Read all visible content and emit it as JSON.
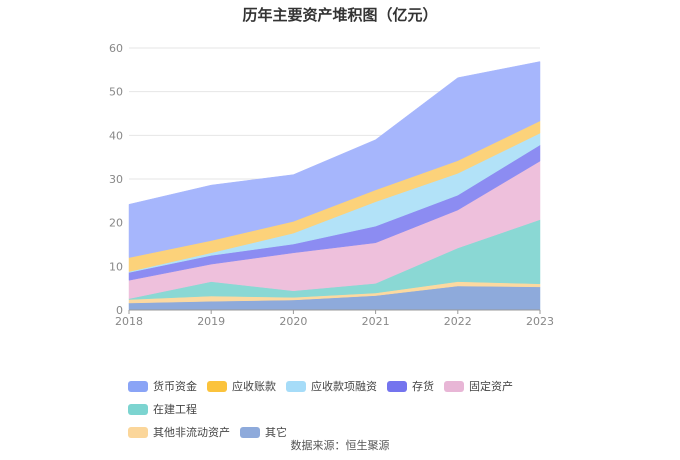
{
  "page": {
    "title": "历年主要资产堆积图（亿元）",
    "source": "数据来源：恒生聚源"
  },
  "chart_data": {
    "type": "area",
    "stacked": true,
    "title": "历年主要资产堆积图（亿元）",
    "xlabel": "",
    "ylabel": "",
    "x": [
      "2018",
      "2019",
      "2020",
      "2021",
      "2022",
      "2023"
    ],
    "ylim": [
      0,
      60
    ],
    "yticks": [
      0,
      10,
      20,
      30,
      40,
      50,
      60
    ],
    "grid": true,
    "legend_position": "bottom",
    "series": [
      {
        "name": "其它",
        "color": "#8eaadb",
        "values": [
          1.6,
          2.0,
          2.3,
          3.3,
          5.5,
          5.3
        ]
      },
      {
        "name": "其他非流动资产",
        "color": "#fcd9a0",
        "values": [
          0.8,
          1.2,
          0.6,
          0.6,
          1.0,
          0.7
        ]
      },
      {
        "name": "在建工程",
        "color": "#8ad8d4",
        "values": [
          0.2,
          3.3,
          1.5,
          2.2,
          7.7,
          14.7
        ]
      },
      {
        "name": "固定资产",
        "color": "#eec0dc",
        "values": [
          4.2,
          4.0,
          8.7,
          9.3,
          8.7,
          13.4
        ]
      },
      {
        "name": "存货",
        "color": "#8c8cf2",
        "values": [
          1.8,
          2.0,
          2.0,
          3.8,
          3.4,
          3.7
        ]
      },
      {
        "name": "应收款项融资",
        "color": "#b2e2f8",
        "values": [
          0.2,
          0.6,
          2.5,
          5.6,
          5.0,
          2.7
        ]
      },
      {
        "name": "应收账款",
        "color": "#fcd27a",
        "values": [
          3.2,
          2.8,
          2.7,
          2.7,
          2.9,
          2.8
        ]
      },
      {
        "name": "货币资金",
        "color": "#a6b6fc",
        "values": [
          12.2,
          12.7,
          10.7,
          11.5,
          19.0,
          13.6
        ]
      }
    ]
  },
  "legend": {
    "rows": [
      [
        {
          "label": "货币资金",
          "color": "#8aa4f6"
        },
        {
          "label": "应收账款",
          "color": "#fbc33c"
        },
        {
          "label": "应收款项融资",
          "color": "#a6dcf8"
        },
        {
          "label": "存货",
          "color": "#7474ee"
        },
        {
          "label": "固定资产",
          "color": "#e8b6d6"
        },
        {
          "label": "在建工程",
          "color": "#7cd4d0"
        }
      ],
      [
        {
          "label": "其他非流动资产",
          "color": "#fbd69a"
        },
        {
          "label": "其它",
          "color": "#8eaadb"
        }
      ]
    ]
  }
}
